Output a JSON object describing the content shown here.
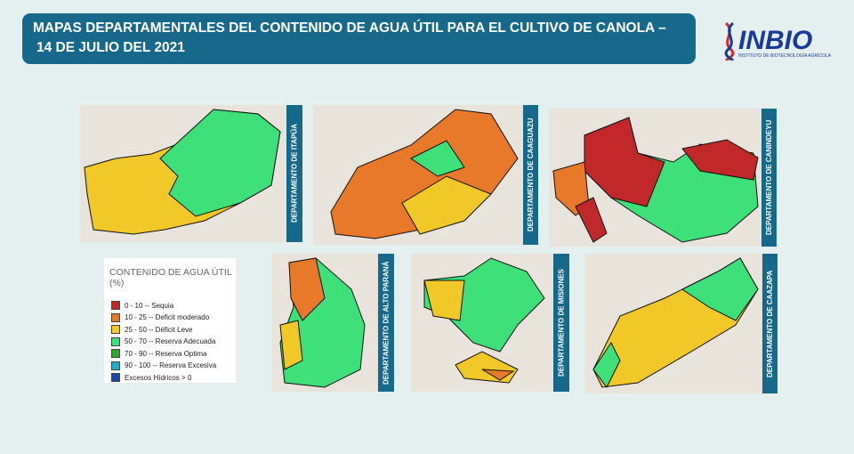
{
  "header": {
    "title_line1": "MAPAS DEPARTAMENTALES DEL CONTENIDO DE AGUA ÚTIL PARA EL CULTIVO DE CANOLA –",
    "title_line2": "14 DE JULIO DEL 2021"
  },
  "logo": {
    "name": "INBIO",
    "subtitle": "INSTITUTO DE BIOTECNOLOGÍA AGRÍCOLA"
  },
  "maps": [
    {
      "label": "DEPARTAMENTO DE ITAPÚA"
    },
    {
      "label": "DEPARTAMENTO DE CAAGUAZU"
    },
    {
      "label": "DEPARTAMENTO DE CANINDEYU"
    },
    {
      "label": "DEPARTAMENTO DE ALTO PARANÁ"
    },
    {
      "label": "DEPARTAMENTO DE MISIONES"
    },
    {
      "label": "DEPARTAMENTO DE CAAZAPA"
    }
  ],
  "legend": {
    "title": "CONTENIDO DE AGUA ÚTIL (%)",
    "items": [
      {
        "label": "0 - 10 --  Sequia",
        "color": "#c0282a"
      },
      {
        "label": "10 - 25 --  Deficit moderado",
        "color": "#e8782a"
      },
      {
        "label": "25 - 50 --  Déficit Leve",
        "color": "#f0c828"
      },
      {
        "label": "50 - 70 --  Reserva Adecuada",
        "color": "#3ee07a"
      },
      {
        "label": "70 - 90 -- Reserva Optima",
        "color": "#2ea82e"
      },
      {
        "label": "90 - 100 -- Reserva Excesiva",
        "color": "#1eb0c8"
      },
      {
        "label": "Excesos Hídricos  > 0",
        "color": "#1a4aa8"
      }
    ]
  }
}
